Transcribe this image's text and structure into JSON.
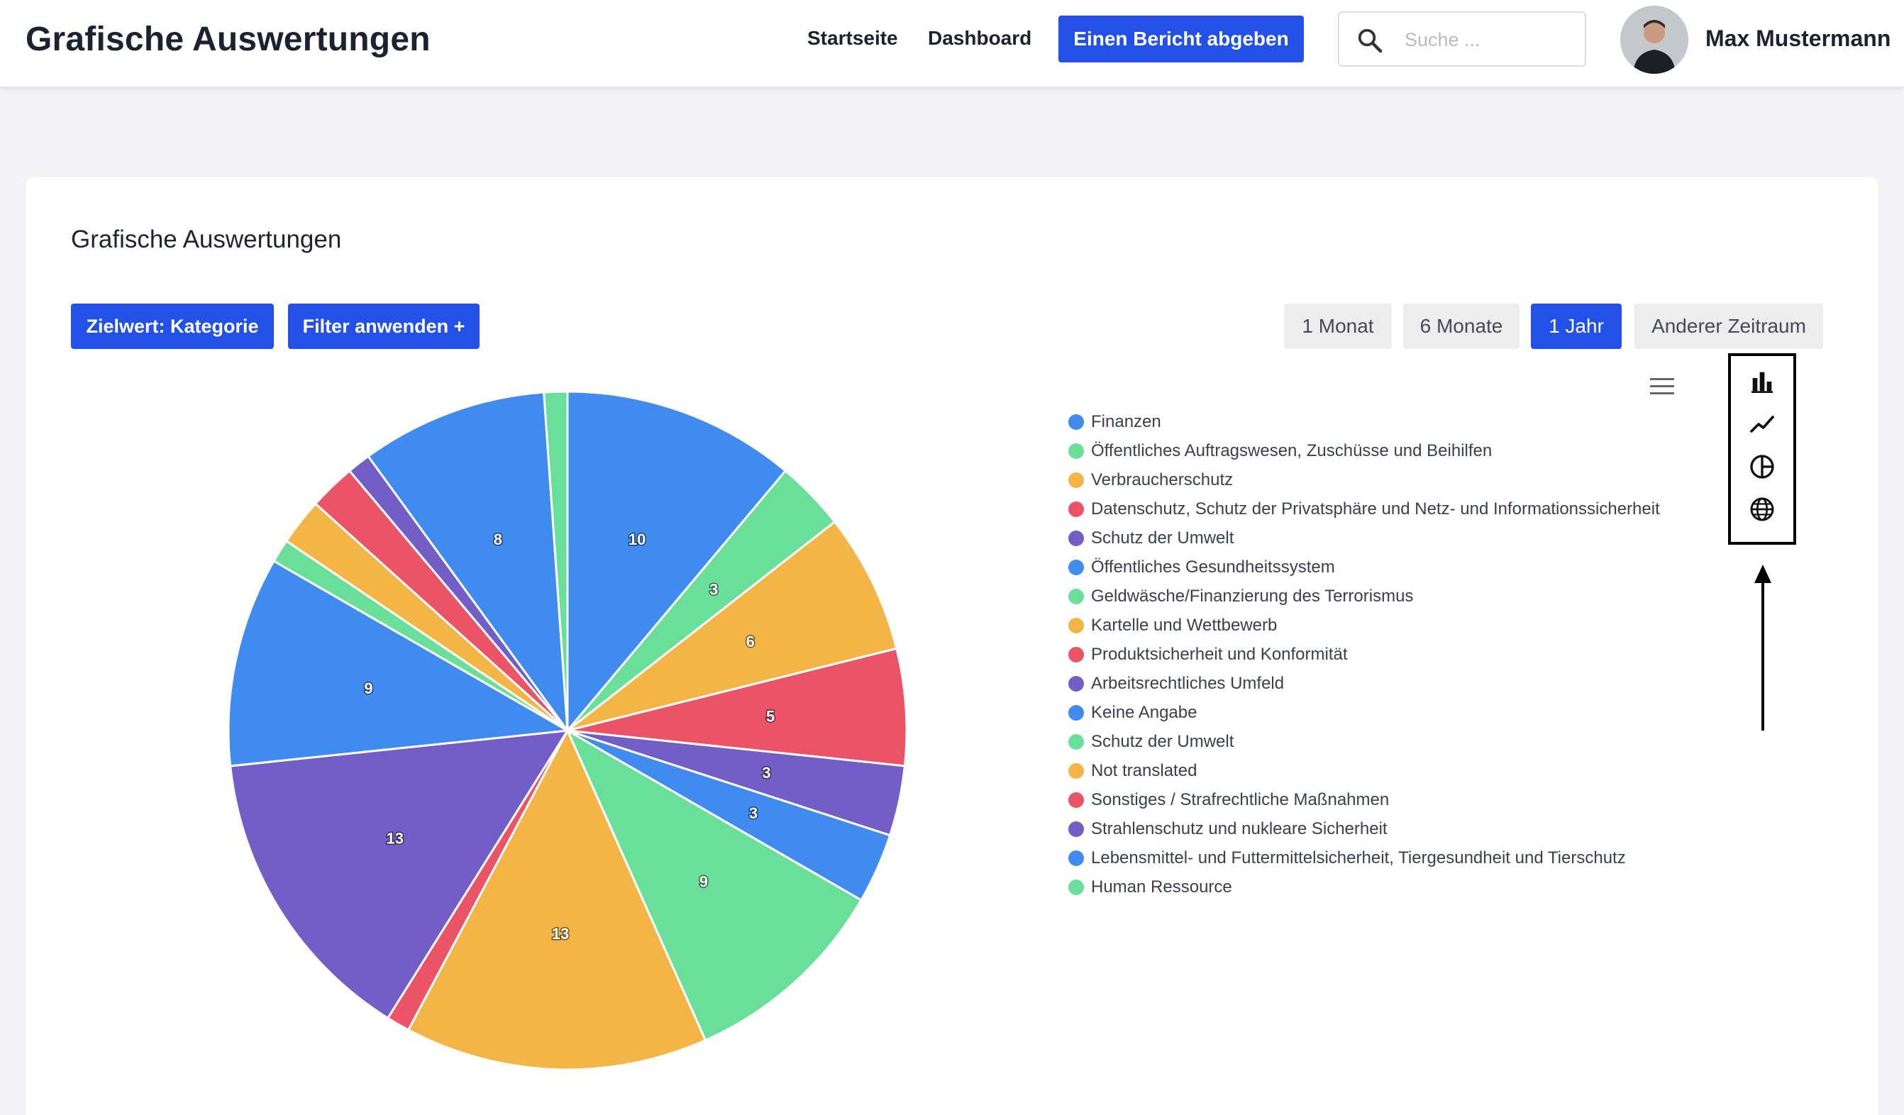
{
  "header": {
    "app_title": "Grafische Auswertungen",
    "nav": [
      {
        "label": "Startseite"
      },
      {
        "label": "Dashboard"
      }
    ],
    "report_button": "Einen Bericht abgeben",
    "search_placeholder": "Suche ...",
    "user_name": "Max Mustermann"
  },
  "card": {
    "title": "Grafische Auswertungen",
    "target_button": "Zielwert: Kategorie",
    "filter_button": "Filter anwenden +",
    "periods": [
      {
        "label": "1 Monat",
        "active": false
      },
      {
        "label": "6 Monate",
        "active": false
      },
      {
        "label": "1 Jahr",
        "active": true
      },
      {
        "label": "Anderer Zeitraum",
        "active": false
      }
    ]
  },
  "toolbox": {
    "tools": [
      "bar-chart-icon",
      "line-chart-icon",
      "pie-chart-icon",
      "globe-icon"
    ]
  },
  "colors": {
    "primary": "#2351e8",
    "blue": "#3f8bef",
    "green": "#69df9a",
    "orange": "#f3b545",
    "red": "#ea5466",
    "purple": "#735ec8"
  },
  "chart_data": {
    "type": "pie",
    "slices": [
      {
        "label": "Finanzen",
        "value": 10,
        "color": "#3f8bef"
      },
      {
        "label": "Öffentliches Auftragswesen, Zuschüsse und Beihilfen",
        "value": 3,
        "color": "#69df9a"
      },
      {
        "label": "Verbraucherschutz",
        "value": 6,
        "color": "#f3b545"
      },
      {
        "label": "Datenschutz, Schutz der Privatsphäre und Netz- und Informationssicherheit",
        "value": 5,
        "color": "#ea5466"
      },
      {
        "label": "Schutz der Umwelt",
        "value": 3,
        "color": "#735ec8"
      },
      {
        "label": "Öffentliches Gesundheitssystem",
        "value": 3,
        "color": "#3f8bef"
      },
      {
        "label": "Geldwäsche/Finanzierung des Terrorismus",
        "value": 9,
        "color": "#69df9a"
      },
      {
        "label": "Kartelle und Wettbewerb",
        "value": 13,
        "color": "#f3b545"
      },
      {
        "label": "Produktsicherheit und Konformität",
        "value": 1,
        "color": "#ea5466"
      },
      {
        "label": "Arbeitsrechtliches Umfeld",
        "value": 13,
        "color": "#735ec8"
      },
      {
        "label": "Keine Angabe",
        "value": 9,
        "color": "#3f8bef"
      },
      {
        "label": "Schutz der Umwelt",
        "value": 1,
        "color": "#69df9a"
      },
      {
        "label": "Not translated",
        "value": 2,
        "color": "#f3b545"
      },
      {
        "label": "Sonstiges / Strafrechtliche Maßnahmen",
        "value": 2,
        "color": "#ea5466"
      },
      {
        "label": "Strahlenschutz und nukleare Sicherheit",
        "value": 1,
        "color": "#735ec8"
      },
      {
        "label": "Lebensmittel- und Futtermittelsicherheit, Tiergesundheit und Tierschutz",
        "value": 8,
        "color": "#3f8bef"
      },
      {
        "label": "Human Ressource",
        "value": 1,
        "color": "#69df9a"
      }
    ],
    "show_labels": [
      true,
      true,
      true,
      true,
      true,
      true,
      true,
      true,
      false,
      true,
      true,
      false,
      false,
      false,
      false,
      true,
      false
    ],
    "legend_position": "right"
  }
}
